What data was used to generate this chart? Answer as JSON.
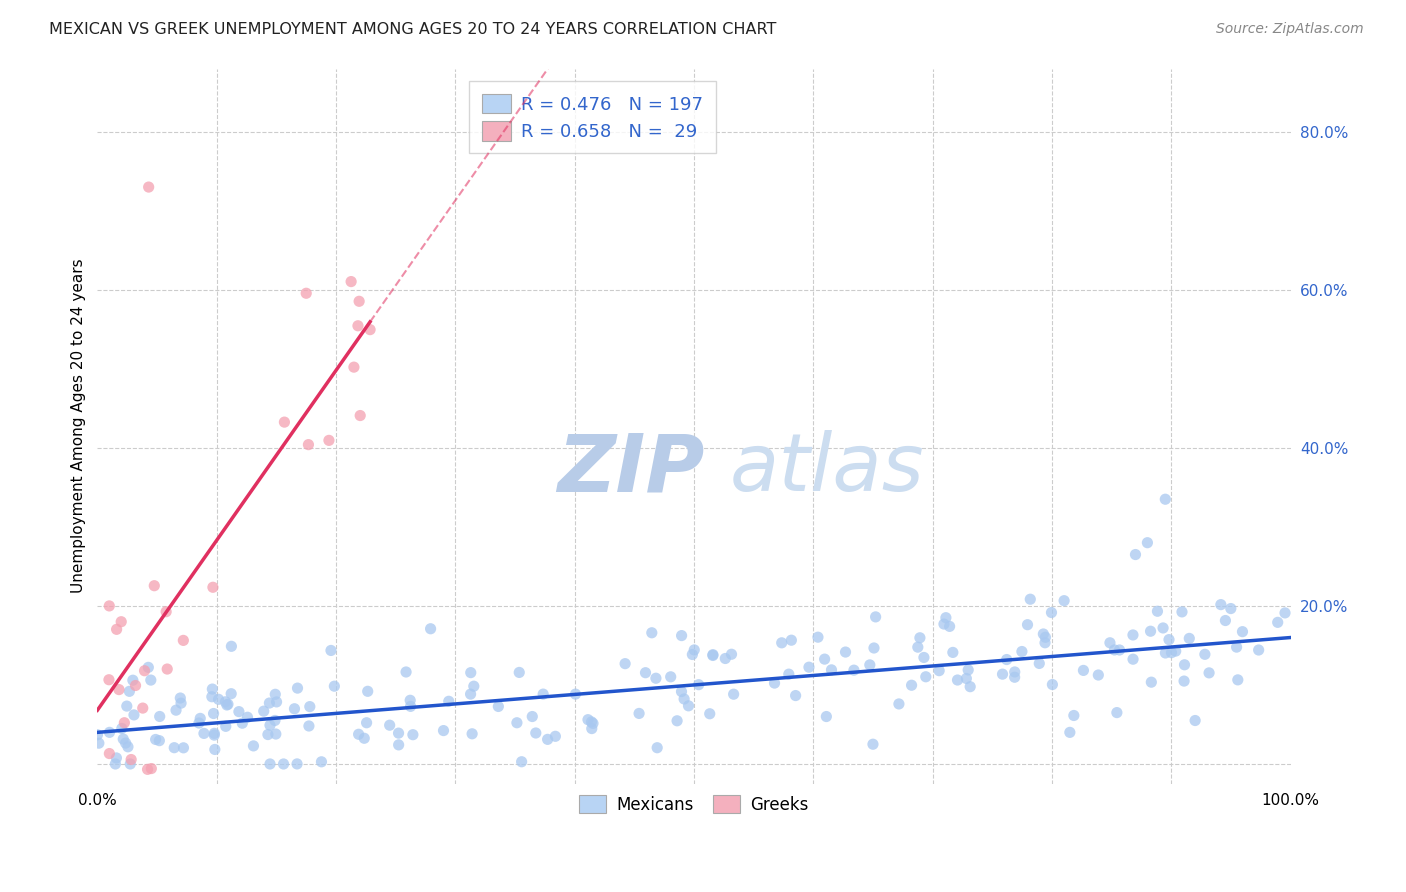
{
  "title": "MEXICAN VS GREEK UNEMPLOYMENT AMONG AGES 20 TO 24 YEARS CORRELATION CHART",
  "source": "Source: ZipAtlas.com",
  "ylabel": "Unemployment Among Ages 20 to 24 years",
  "xlim": [
    0.0,
    1.0
  ],
  "ylim": [
    -0.025,
    0.88
  ],
  "right_ytick_vals": [
    0.0,
    0.2,
    0.4,
    0.6,
    0.8
  ],
  "right_yticklabels": [
    "",
    "20.0%",
    "40.0%",
    "60.0%",
    "80.0%"
  ],
  "xtick_values": [
    0.0,
    0.1,
    0.2,
    0.3,
    0.4,
    0.5,
    0.6,
    0.7,
    0.8,
    0.9,
    1.0
  ],
  "xticklabels": [
    "0.0%",
    "",
    "",
    "",
    "",
    "",
    "",
    "",
    "",
    "",
    "100.0%"
  ],
  "blue_scatter_color": "#a8c8f0",
  "pink_scatter_color": "#f4a0b0",
  "blue_line_color": "#2255cc",
  "pink_line_color": "#e03060",
  "legend_blue_face": "#b8d4f4",
  "legend_pink_face": "#f4b0be",
  "R_blue": 0.476,
  "N_blue": 197,
  "R_pink": 0.658,
  "N_pink": 29,
  "grid_color": "#cccccc",
  "bg_color": "#ffffff",
  "watermark_zip_color": "#c8daf0",
  "watermark_atlas_color": "#d8e8f8",
  "legend_R_color": "#000000",
  "legend_N_color": "#3366cc",
  "seed": 12345,
  "mexicans_label": "Mexicans",
  "greeks_label": "Greeks"
}
